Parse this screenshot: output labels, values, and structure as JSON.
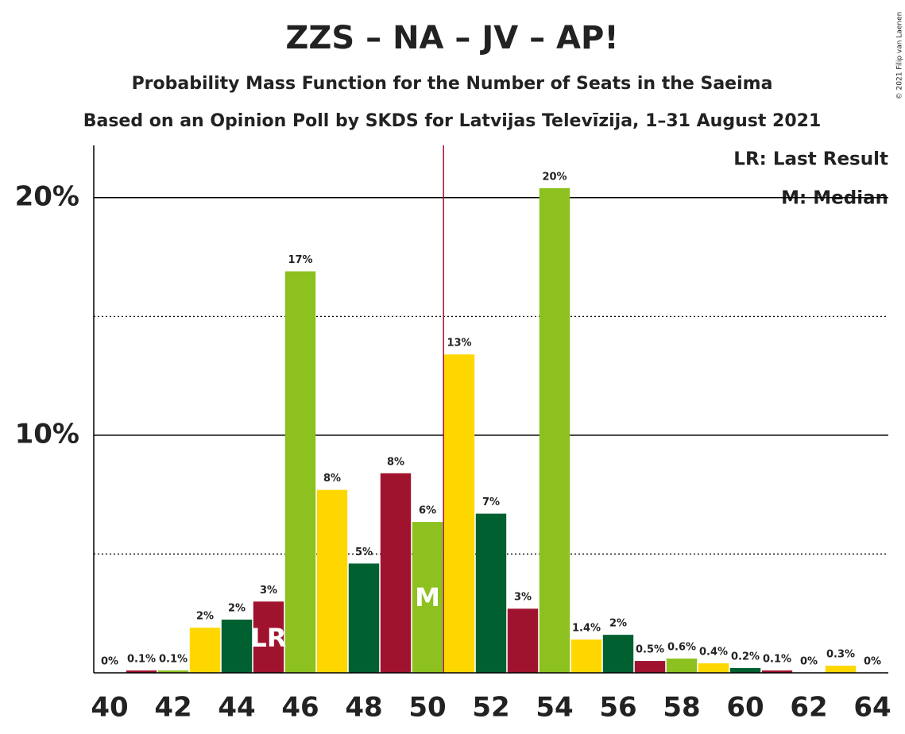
{
  "chart_data": {
    "type": "bar",
    "title": "ZZS – NA – JV – AP!",
    "subtitle": "Probability Mass Function for the Number of Seats in the Saeima",
    "subtitle2": "Based on an Opinion Poll by SKDS for Latvijas Televīzija, 1–31 August 2021",
    "credit": "© 2021 Filip van Laenen",
    "x": [
      40,
      41,
      42,
      43,
      44,
      45,
      46,
      47,
      48,
      49,
      50,
      51,
      52,
      53,
      54,
      55,
      56,
      57,
      58,
      59,
      60,
      61,
      62,
      63,
      64
    ],
    "values": [
      0,
      0.1,
      0.1,
      1.9,
      2.24,
      3.0,
      16.9,
      7.7,
      4.6,
      8.4,
      6.35,
      13.4,
      6.7,
      2.7,
      20.4,
      1.4,
      1.6,
      0.5,
      0.6,
      0.4,
      0.2,
      0.1,
      0,
      0.3,
      0
    ],
    "value_labels": [
      "0%",
      "0.1%",
      "0.1%",
      "2%",
      "2%",
      "3%",
      "17%",
      "8%",
      "5%",
      "8%",
      "6%",
      "13%",
      "7%",
      "3%",
      "20%",
      "1.4%",
      "2%",
      "0.5%",
      "0.6%",
      "0.4%",
      "0.2%",
      "0.1%",
      "0%",
      "0.3%",
      "0%"
    ],
    "colors": [
      "#006030",
      "#a0132f",
      "#8cc11f",
      "#ffd700",
      "#006030",
      "#a0132f",
      "#8cc11f",
      "#ffd700",
      "#006030",
      "#a0132f",
      "#8cc11f",
      "#ffd700",
      "#006030",
      "#a0132f",
      "#8cc11f",
      "#ffd700",
      "#006030",
      "#a0132f",
      "#8cc11f",
      "#ffd700",
      "#006030",
      "#a0132f",
      "#8cc11f",
      "#ffd700",
      "#006030"
    ],
    "xlim": [
      39.5,
      64.5
    ],
    "xticks": [
      40,
      42,
      44,
      46,
      48,
      50,
      52,
      54,
      56,
      58,
      60,
      62,
      64
    ],
    "ylim": [
      0,
      22.2
    ],
    "yticks": [
      {
        "value": 10,
        "label": "10%"
      },
      {
        "value": 20,
        "label": "20%"
      }
    ],
    "minor_yticks": [
      5,
      15
    ],
    "last_result": {
      "x": 45,
      "label": "LR"
    },
    "median": {
      "x": 50,
      "label": "M"
    },
    "legend": [
      "LR: Last Result",
      "M: Median"
    ]
  }
}
